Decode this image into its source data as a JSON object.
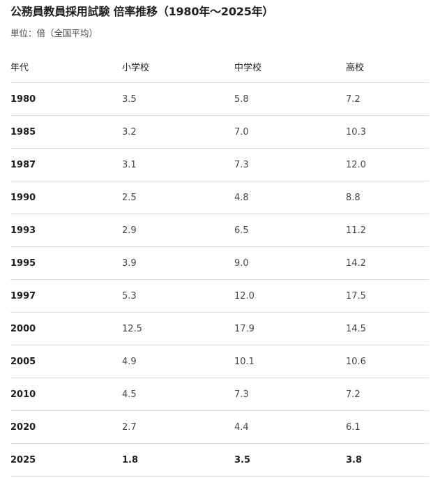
{
  "title": "公務員教員採用試験 倍率推移（1980年〜2025年）",
  "subtitle": "単位：倍（全国平均）",
  "headers": [
    "年代",
    "小学校",
    "中学校",
    "高校"
  ],
  "rows": [
    {
      "year": "1980",
      "elementary": "3.5",
      "middle": "5.8",
      "high": "7.2"
    },
    {
      "year": "1985",
      "elementary": "3.2",
      "middle": "7.0",
      "high": "10.3"
    },
    {
      "year": "1987",
      "elementary": "3.1",
      "middle": "7.3",
      "high": "12.0"
    },
    {
      "year": "1990",
      "elementary": "2.5",
      "middle": "4.8",
      "high": "8.8"
    },
    {
      "year": "1993",
      "elementary": "2.9",
      "middle": "6.5",
      "high": "11.2"
    },
    {
      "year": "1995",
      "elementary": "3.9",
      "middle": "9.0",
      "high": "14.2"
    },
    {
      "year": "1997",
      "elementary": "5.3",
      "middle": "12.0",
      "high": "17.5"
    },
    {
      "year": "2000",
      "elementary": "12.5",
      "middle": "17.9",
      "high": "14.5"
    },
    {
      "year": "2005",
      "elementary": "4.9",
      "middle": "10.1",
      "high": "10.6"
    },
    {
      "year": "2010",
      "elementary": "4.5",
      "middle": "7.3",
      "high": "7.2"
    },
    {
      "year": "2020",
      "elementary": "2.7",
      "middle": "4.4",
      "high": "6.1"
    },
    {
      "year": "2025",
      "elementary": "1.8",
      "middle": "3.5",
      "high": "3.8"
    }
  ]
}
